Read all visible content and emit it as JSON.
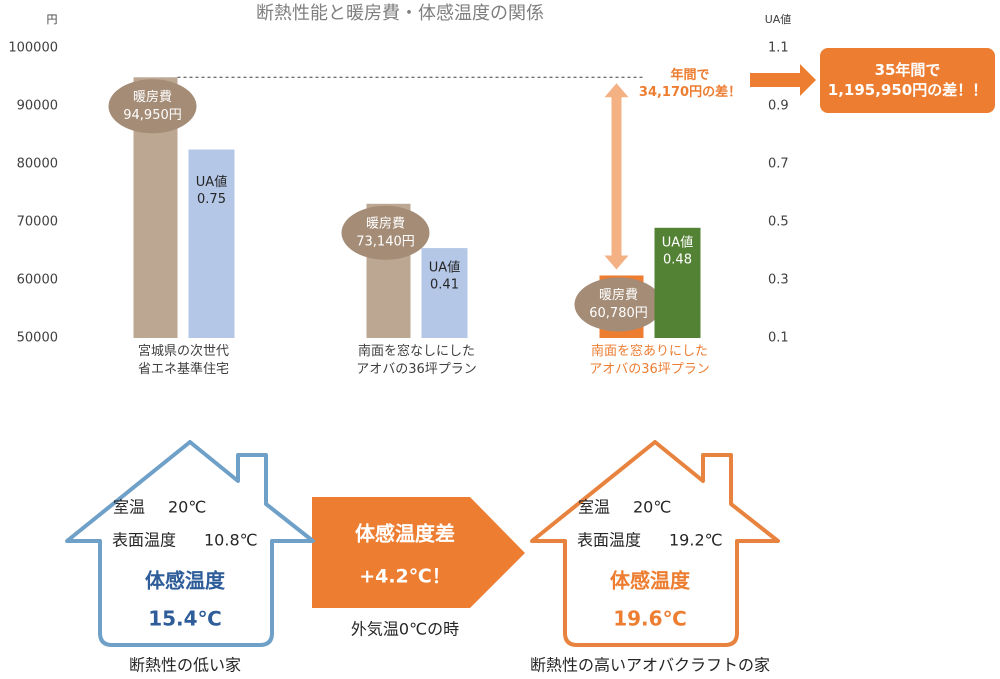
{
  "chart_data": {
    "type": "bar",
    "title": "断熱性能と暖房費・体感温度の関係",
    "ylabel": "円",
    "y2label": "UA値",
    "categories": [
      "宮城県の次世代\n省エネ基準住宅",
      "南面を窓なしにした\nアオバの36坪プラン",
      "南面を窓ありにした\nアオバの36坪プラン"
    ],
    "category_colors": [
      "#404040",
      "#404040",
      "#ed7d31"
    ],
    "series": [
      {
        "name": "暖房費",
        "values": [
          94950,
          73140,
          60780
        ],
        "value_labels": [
          "94,950円",
          "73,140円",
          "60,780円"
        ],
        "colors": [
          "#bca793",
          "#bca793",
          "#ed7d31"
        ],
        "label_color": "#a48c76"
      },
      {
        "name": "UA値",
        "axis": "y2",
        "values": [
          0.75,
          0.41,
          0.48
        ],
        "colors": [
          "#b4c7e7",
          "#b4c7e7",
          "#548235"
        ]
      }
    ],
    "ylim": [
      50000,
      100000
    ],
    "yticks": [
      50000,
      60000,
      70000,
      80000,
      90000,
      100000
    ],
    "y2lim": [
      0.1,
      1.1
    ],
    "y2ticks": [
      0.1,
      0.3,
      0.5,
      0.7,
      0.9,
      1.1
    ],
    "grid": false,
    "annotations": [
      "年間で\n34,170円の差！",
      "35年間で\n1,195,950円の差！！"
    ]
  },
  "infographic": {
    "houses": [
      {
        "room_label": "室温",
        "room": "20℃",
        "surface_label": "表面温度",
        "surface": "10.8℃",
        "felt_label": "体感温度",
        "felt": "15.4℃",
        "caption": "断熱性の低い家",
        "color": "#6fa0c8",
        "text_color": "#2e5d9a"
      },
      {
        "room_label": "室温",
        "room": "20℃",
        "surface_label": "表面温度",
        "surface": "19.2℃",
        "felt_label": "体感温度",
        "felt": "19.6℃",
        "caption": "断熱性の高いアオバクラフトの家",
        "color": "#e8833f",
        "text_color": "#ed7d31"
      }
    ],
    "arrow": {
      "title": "体感温度差",
      "value": "+4.2℃！",
      "note": "外気温0℃の時"
    }
  }
}
